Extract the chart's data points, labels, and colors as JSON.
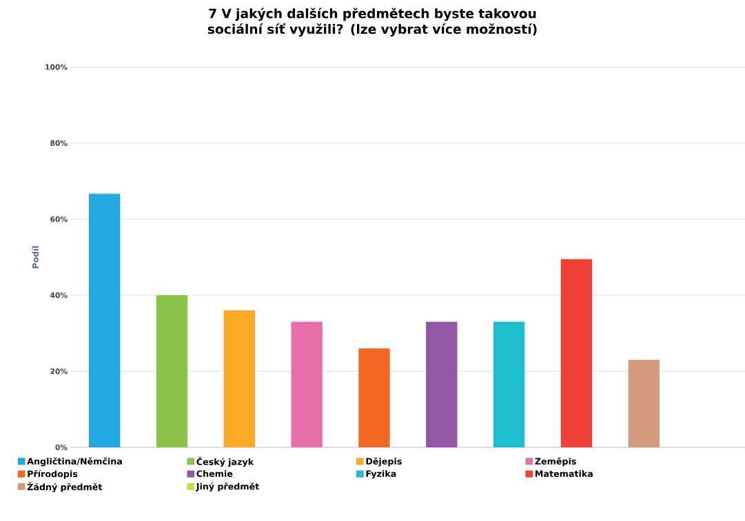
{
  "chart_data": {
    "type": "bar",
    "title": "7 V jakých dalších předmětech byste takovou sociální síť využili? (lze vybrat více možností)",
    "ylabel": "Podíl",
    "categories": [
      null,
      null,
      null,
      null,
      null,
      null,
      null,
      null,
      null,
      null
    ],
    "series": [
      {
        "name": "Angličtina/Němčina",
        "color": "#22a9e1",
        "values": [
          66.7,
          null,
          null,
          null,
          null,
          null,
          null,
          null,
          null,
          null
        ]
      },
      {
        "name": "Český jazyk",
        "color": "#8bc34a",
        "values": [
          null,
          40,
          null,
          null,
          null,
          null,
          null,
          null,
          null,
          null
        ]
      },
      {
        "name": "Dějepis",
        "color": "#fbaa26",
        "values": [
          null,
          null,
          36,
          null,
          null,
          null,
          null,
          null,
          null,
          null
        ]
      },
      {
        "name": "Zeměpis",
        "color": "#e66fa9",
        "values": [
          null,
          null,
          null,
          33,
          null,
          null,
          null,
          null,
          null,
          null
        ]
      },
      {
        "name": "Přírodopis",
        "color": "#f26722",
        "values": [
          null,
          null,
          null,
          null,
          26,
          null,
          null,
          null,
          null,
          null
        ]
      },
      {
        "name": "Chemie",
        "color": "#9457a4",
        "values": [
          null,
          null,
          null,
          null,
          null,
          33,
          null,
          null,
          null,
          null
        ]
      },
      {
        "name": "Fyzika",
        "color": "#1ebfcd",
        "values": [
          null,
          null,
          null,
          null,
          null,
          null,
          33,
          null,
          null,
          null
        ]
      },
      {
        "name": "Matematika",
        "color": "#ef4136",
        "values": [
          null,
          null,
          null,
          null,
          null,
          null,
          null,
          49.5,
          null,
          null
        ]
      },
      {
        "name": "Žádný předmět",
        "color": "#d69a7c",
        "values": [
          null,
          null,
          null,
          null,
          null,
          null,
          null,
          null,
          23,
          null
        ]
      },
      {
        "name": "Jiný předmět",
        "color": "#cddc39",
        "values": [
          null,
          null,
          null,
          null,
          null,
          null,
          null,
          null,
          null,
          0
        ]
      }
    ],
    "ylim": [
      0,
      100
    ],
    "yticks": [
      {
        "value": 0,
        "label": "0%"
      },
      {
        "value": 20,
        "label": "20%"
      },
      {
        "value": 40,
        "label": "40%"
      },
      {
        "value": 60,
        "label": "60%"
      },
      {
        "value": 80,
        "label": "80%"
      },
      {
        "value": 100,
        "label": "100%"
      }
    ],
    "grid": "y",
    "legend": "bottom"
  }
}
